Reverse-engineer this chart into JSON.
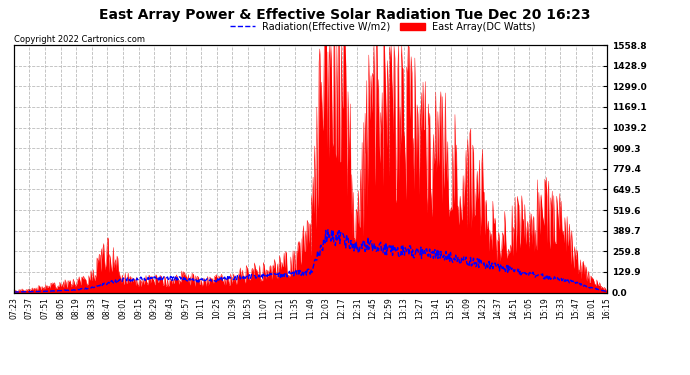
{
  "title": "East Array Power & Effective Solar Radiation Tue Dec 20 16:23",
  "copyright": "Copyright 2022 Cartronics.com",
  "legend_radiation": "Radiation(Effective W/m2)",
  "legend_east": "East Array(DC Watts)",
  "y_ticks": [
    0.0,
    129.9,
    259.8,
    389.7,
    519.6,
    649.5,
    779.4,
    909.3,
    1039.2,
    1169.1,
    1299.0,
    1428.9,
    1558.8
  ],
  "ymin": 0.0,
  "ymax": 1558.8,
  "bg_color": "#ffffff",
  "grid_color": "#bbbbbb",
  "red_color": "#ff0000",
  "blue_color": "#0000ff",
  "title_color": "#000000",
  "times": [
    "07:23",
    "07:37",
    "07:51",
    "08:05",
    "08:19",
    "08:33",
    "08:47",
    "09:01",
    "09:15",
    "09:29",
    "09:43",
    "09:57",
    "10:11",
    "10:25",
    "10:39",
    "10:53",
    "11:07",
    "11:21",
    "11:35",
    "11:49",
    "12:03",
    "12:17",
    "12:31",
    "12:45",
    "12:59",
    "13:13",
    "13:27",
    "13:41",
    "13:55",
    "14:09",
    "14:23",
    "14:37",
    "14:51",
    "15:05",
    "15:19",
    "15:33",
    "15:47",
    "16:01",
    "16:15"
  ],
  "east_array": [
    10,
    20,
    35,
    50,
    65,
    100,
    260,
    90,
    70,
    80,
    70,
    100,
    60,
    80,
    90,
    120,
    140,
    160,
    200,
    350,
    1540,
    1400,
    380,
    1250,
    1100,
    1050,
    1000,
    900,
    820,
    750,
    650,
    300,
    400,
    450,
    500,
    450,
    200,
    80,
    10
  ],
  "radiation": [
    3,
    5,
    8,
    12,
    18,
    30,
    60,
    80,
    85,
    90,
    88,
    85,
    75,
    80,
    90,
    100,
    105,
    110,
    120,
    130,
    350,
    340,
    290,
    310,
    270,
    260,
    250,
    240,
    220,
    200,
    180,
    160,
    140,
    120,
    100,
    85,
    60,
    30,
    5
  ],
  "noise_seed": 42
}
